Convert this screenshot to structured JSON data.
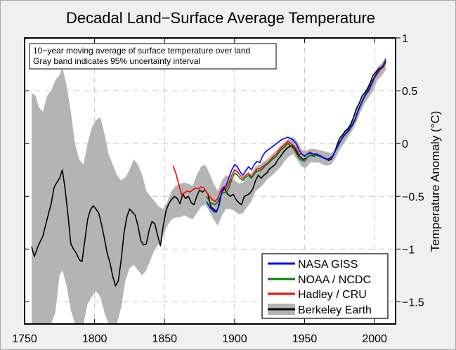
{
  "chart_data": {
    "type": "line",
    "title": "Decadal Land−Surface Average Temperature",
    "xlabel": "",
    "ylabel": "Temperature Anomaly (°C)",
    "xlim": [
      1750,
      2015
    ],
    "ylim": [
      -1.71,
      1.0
    ],
    "x_ticks": [
      1750,
      1800,
      1850,
      1900,
      1950,
      2000
    ],
    "x_tick_labels": [
      "1750",
      "1800",
      "1850",
      "1900",
      "1950",
      "2000"
    ],
    "y_ticks": [
      1,
      0.5,
      0,
      -0.5,
      -1,
      -1.5
    ],
    "y_tick_labels": [
      "1",
      "0.5",
      "0",
      "−0.5",
      "−1",
      "−1.5"
    ],
    "y_axis_side": "right",
    "grid": true,
    "annotation": [
      "10−year moving average of surface temperature over land",
      "Gray band indicates 95% uncertainty interval"
    ],
    "annotation_position": "top-left",
    "legend_position": "bottom-right",
    "legend": [
      {
        "name": "NASA GISS",
        "color": "#0000ff"
      },
      {
        "name": "NOAA / NCDC",
        "color": "#008000"
      },
      {
        "name": "Hadley / CRU",
        "color": "#ff0000"
      },
      {
        "name": "Berkeley Earth",
        "color": "#000000",
        "band_color": "#b4b4b4"
      }
    ],
    "series": [
      {
        "name": "Berkeley Earth",
        "color": "#000000",
        "x": [
          1755,
          1757,
          1760,
          1763,
          1766,
          1769,
          1771,
          1773,
          1775,
          1777,
          1779,
          1781,
          1783,
          1785,
          1787,
          1789,
          1791,
          1793,
          1795,
          1797,
          1799,
          1801,
          1803,
          1805,
          1807,
          1809,
          1811,
          1813,
          1815,
          1817,
          1819,
          1821,
          1823,
          1825,
          1827,
          1829,
          1831,
          1833,
          1835,
          1837,
          1839,
          1841,
          1843,
          1845,
          1847,
          1849,
          1851,
          1853,
          1855,
          1857,
          1859,
          1861,
          1863,
          1865,
          1867,
          1869,
          1871,
          1873,
          1875,
          1877,
          1879,
          1881,
          1883,
          1885,
          1887,
          1889,
          1891,
          1893,
          1895,
          1897,
          1899,
          1901,
          1903,
          1905,
          1907,
          1909,
          1911,
          1913,
          1915,
          1917,
          1919,
          1921,
          1923,
          1925,
          1927,
          1929,
          1931,
          1933,
          1935,
          1937,
          1939,
          1941,
          1943,
          1945,
          1947,
          1949,
          1951,
          1953,
          1955,
          1957,
          1959,
          1961,
          1963,
          1965,
          1967,
          1969,
          1971,
          1973,
          1975,
          1977,
          1979,
          1981,
          1983,
          1985,
          1987,
          1989,
          1991,
          1993,
          1995,
          1997,
          1999,
          2001,
          2003,
          2005,
          2007
        ],
        "y": [
          -0.98,
          -1.07,
          -0.96,
          -0.88,
          -0.72,
          -0.57,
          -0.42,
          -0.37,
          -0.33,
          -0.25,
          -0.44,
          -0.68,
          -0.95,
          -1.0,
          -1.04,
          -1.1,
          -1.12,
          -0.92,
          -0.72,
          -0.63,
          -0.59,
          -0.62,
          -0.66,
          -0.77,
          -0.9,
          -1.04,
          -1.13,
          -1.26,
          -1.35,
          -1.3,
          -1.1,
          -0.85,
          -0.7,
          -0.62,
          -0.65,
          -0.68,
          -0.78,
          -0.92,
          -0.96,
          -0.95,
          -0.82,
          -0.74,
          -0.76,
          -0.87,
          -0.97,
          -0.78,
          -0.64,
          -0.57,
          -0.53,
          -0.5,
          -0.52,
          -0.57,
          -0.48,
          -0.52,
          -0.5,
          -0.56,
          -0.58,
          -0.5,
          -0.44,
          -0.46,
          -0.44,
          -0.48,
          -0.6,
          -0.62,
          -0.65,
          -0.58,
          -0.45,
          -0.43,
          -0.48,
          -0.5,
          -0.48,
          -0.53,
          -0.56,
          -0.58,
          -0.5,
          -0.49,
          -0.47,
          -0.43,
          -0.35,
          -0.3,
          -0.33,
          -0.3,
          -0.28,
          -0.24,
          -0.22,
          -0.2,
          -0.15,
          -0.12,
          -0.08,
          -0.05,
          -0.03,
          -0.02,
          -0.04,
          -0.1,
          -0.13,
          -0.15,
          -0.14,
          -0.12,
          -0.11,
          -0.12,
          -0.1,
          -0.12,
          -0.13,
          -0.14,
          -0.16,
          -0.15,
          -0.1,
          -0.02,
          0.05,
          0.08,
          0.12,
          0.14,
          0.18,
          0.25,
          0.33,
          0.38,
          0.45,
          0.48,
          0.52,
          0.58,
          0.65,
          0.68,
          0.71,
          0.72,
          0.76
        ]
      },
      {
        "name": "Hadley / CRU",
        "color": "#ff0000",
        "x": [
          1856,
          1858,
          1860,
          1862,
          1864,
          1866,
          1868,
          1870,
          1872,
          1874,
          1876,
          1878,
          1880,
          1882,
          1884,
          1886,
          1888,
          1890,
          1892,
          1894,
          1896,
          1898,
          1900,
          1902,
          1904,
          1906,
          1908,
          1910,
          1912,
          1914,
          1916,
          1918,
          1920,
          1922,
          1924,
          1926,
          1928,
          1930,
          1932,
          1934,
          1936,
          1938,
          1940,
          1942,
          1944,
          1946,
          1948,
          1950,
          1952,
          1954,
          1956,
          1958,
          1960,
          1962,
          1964,
          1966,
          1968,
          1970,
          1972,
          1974,
          1976,
          1978,
          1980,
          1982,
          1984,
          1986,
          1988,
          1990,
          1992,
          1994,
          1996,
          1998,
          2000,
          2002,
          2004,
          2006,
          2008
        ],
        "y": [
          -0.21,
          -0.28,
          -0.38,
          -0.48,
          -0.47,
          -0.45,
          -0.46,
          -0.44,
          -0.42,
          -0.43,
          -0.41,
          -0.42,
          -0.46,
          -0.5,
          -0.53,
          -0.55,
          -0.52,
          -0.45,
          -0.41,
          -0.43,
          -0.38,
          -0.3,
          -0.25,
          -0.27,
          -0.3,
          -0.33,
          -0.3,
          -0.28,
          -0.32,
          -0.28,
          -0.24,
          -0.24,
          -0.22,
          -0.2,
          -0.18,
          -0.15,
          -0.12,
          -0.1,
          -0.06,
          -0.03,
          -0.01,
          0.02,
          0.0,
          -0.02,
          -0.05,
          -0.1,
          -0.1,
          -0.12,
          -0.1,
          -0.08,
          -0.1,
          -0.1,
          -0.11,
          -0.12,
          -0.14,
          -0.15,
          -0.14,
          -0.12,
          -0.07,
          -0.02,
          0.03,
          0.07,
          0.1,
          0.13,
          0.17,
          0.22,
          0.3,
          0.36,
          0.42,
          0.47,
          0.5,
          0.56,
          0.62,
          0.66,
          0.7,
          0.72,
          0.77
        ]
      },
      {
        "name": "NOAA / NCDC",
        "color": "#008000",
        "x": [
          1880,
          1882,
          1884,
          1886,
          1888,
          1890,
          1892,
          1894,
          1896,
          1898,
          1900,
          1902,
          1904,
          1906,
          1908,
          1910,
          1912,
          1914,
          1916,
          1918,
          1920,
          1922,
          1924,
          1926,
          1928,
          1930,
          1932,
          1934,
          1936,
          1938,
          1940,
          1942,
          1944,
          1946,
          1948,
          1950,
          1952,
          1954,
          1956,
          1958,
          1960,
          1962,
          1964,
          1966,
          1968,
          1970,
          1972,
          1974,
          1976,
          1978,
          1980,
          1982,
          1984,
          1986,
          1988,
          1990,
          1992,
          1994,
          1996,
          1998,
          2000,
          2002,
          2004,
          2006,
          2008
        ],
        "y": [
          -0.5,
          -0.55,
          -0.57,
          -0.58,
          -0.55,
          -0.5,
          -0.46,
          -0.47,
          -0.42,
          -0.34,
          -0.28,
          -0.3,
          -0.33,
          -0.35,
          -0.32,
          -0.3,
          -0.33,
          -0.29,
          -0.26,
          -0.26,
          -0.24,
          -0.21,
          -0.19,
          -0.16,
          -0.14,
          -0.12,
          -0.08,
          -0.05,
          -0.03,
          0.0,
          -0.02,
          -0.05,
          -0.09,
          -0.14,
          -0.16,
          -0.17,
          -0.13,
          -0.11,
          -0.12,
          -0.11,
          -0.12,
          -0.13,
          -0.14,
          -0.15,
          -0.14,
          -0.12,
          -0.07,
          -0.01,
          0.04,
          0.08,
          0.11,
          0.14,
          0.18,
          0.23,
          0.31,
          0.37,
          0.43,
          0.48,
          0.52,
          0.58,
          0.64,
          0.68,
          0.72,
          0.74,
          0.8
        ]
      },
      {
        "name": "NASA GISS",
        "color": "#0000ff",
        "x": [
          1880,
          1882,
          1884,
          1886,
          1888,
          1890,
          1892,
          1894,
          1896,
          1898,
          1900,
          1902,
          1904,
          1906,
          1908,
          1910,
          1912,
          1914,
          1916,
          1918,
          1920,
          1922,
          1924,
          1926,
          1928,
          1930,
          1932,
          1934,
          1936,
          1938,
          1940,
          1942,
          1944,
          1946,
          1948,
          1950,
          1952,
          1954,
          1956,
          1958,
          1960,
          1962,
          1964,
          1966,
          1968,
          1970,
          1972,
          1974,
          1976,
          1978,
          1980,
          1982,
          1984,
          1986,
          1988,
          1990,
          1992,
          1994,
          1996,
          1998,
          2000,
          2002,
          2004,
          2006,
          2008
        ],
        "y": [
          -0.55,
          -0.6,
          -0.63,
          -0.65,
          -0.62,
          -0.5,
          -0.42,
          -0.4,
          -0.32,
          -0.25,
          -0.2,
          -0.22,
          -0.27,
          -0.3,
          -0.26,
          -0.22,
          -0.25,
          -0.2,
          -0.17,
          -0.18,
          -0.12,
          -0.08,
          -0.06,
          -0.04,
          -0.02,
          0.0,
          0.02,
          0.04,
          0.05,
          0.06,
          0.05,
          0.03,
          0.0,
          -0.06,
          -0.1,
          -0.12,
          -0.1,
          -0.09,
          -0.1,
          -0.1,
          -0.11,
          -0.12,
          -0.14,
          -0.15,
          -0.14,
          -0.12,
          -0.07,
          -0.02,
          0.03,
          0.07,
          0.1,
          0.13,
          0.17,
          0.22,
          0.3,
          0.36,
          0.42,
          0.47,
          0.51,
          0.57,
          0.63,
          0.67,
          0.71,
          0.73,
          0.78
        ]
      },
      {
        "name": "Berkeley Earth 95% uncertainty",
        "type": "band",
        "color": "#b4b4b4",
        "x": [
          1755,
          1758,
          1760,
          1763,
          1766,
          1769,
          1772,
          1775,
          1777,
          1780,
          1783,
          1786,
          1789,
          1792,
          1795,
          1798,
          1801,
          1804,
          1807,
          1810,
          1813,
          1816,
          1819,
          1822,
          1825,
          1828,
          1831,
          1834,
          1837,
          1840,
          1843,
          1846,
          1849,
          1852,
          1855,
          1858,
          1861,
          1864,
          1867,
          1870,
          1873,
          1876,
          1879,
          1882,
          1885,
          1888,
          1891,
          1894,
          1897,
          1900,
          1903,
          1906,
          1909,
          1912,
          1915,
          1918,
          1921,
          1924,
          1927,
          1930,
          1933,
          1936,
          1939,
          1942,
          1945,
          1948,
          1951,
          1954,
          1957,
          1960,
          1963,
          1966,
          1969,
          1972,
          1975,
          1978,
          1981,
          1984,
          1987,
          1990,
          1993,
          1996,
          1999,
          2002,
          2005,
          2008
        ],
        "lower": [
          -1.71,
          -1.71,
          -1.71,
          -1.71,
          -1.71,
          -1.71,
          -1.6,
          -1.25,
          -1.2,
          -1.35,
          -1.58,
          -1.71,
          -1.71,
          -1.71,
          -1.52,
          -1.45,
          -1.4,
          -1.45,
          -1.6,
          -1.71,
          -1.71,
          -1.71,
          -1.55,
          -1.3,
          -1.18,
          -1.15,
          -1.2,
          -1.25,
          -1.2,
          -1.1,
          -1.0,
          -0.95,
          -0.88,
          -0.78,
          -0.72,
          -0.7,
          -0.7,
          -0.68,
          -0.7,
          -0.72,
          -0.66,
          -0.6,
          -0.58,
          -0.64,
          -0.72,
          -0.78,
          -0.68,
          -0.62,
          -0.62,
          -0.64,
          -0.67,
          -0.66,
          -0.6,
          -0.55,
          -0.45,
          -0.42,
          -0.38,
          -0.33,
          -0.3,
          -0.26,
          -0.22,
          -0.16,
          -0.12,
          -0.1,
          -0.16,
          -0.22,
          -0.23,
          -0.18,
          -0.18,
          -0.18,
          -0.2,
          -0.21,
          -0.2,
          -0.14,
          -0.06,
          0.0,
          0.06,
          0.12,
          0.2,
          0.3,
          0.38,
          0.44,
          0.5,
          0.6,
          0.64,
          0.7
        ],
        "upper": [
          0.48,
          0.45,
          0.35,
          0.3,
          0.45,
          0.5,
          0.6,
          0.65,
          0.72,
          0.55,
          0.3,
          0.0,
          -0.15,
          -0.2,
          0.0,
          0.15,
          0.22,
          0.25,
          0.1,
          -0.1,
          -0.2,
          -0.3,
          -0.35,
          -0.32,
          -0.25,
          -0.15,
          -0.2,
          -0.3,
          -0.45,
          -0.5,
          -0.55,
          -0.6,
          -0.62,
          -0.55,
          -0.45,
          -0.4,
          -0.38,
          -0.37,
          -0.38,
          -0.4,
          -0.3,
          -0.22,
          -0.2,
          -0.28,
          -0.38,
          -0.45,
          -0.35,
          -0.3,
          -0.33,
          -0.35,
          -0.38,
          -0.37,
          -0.32,
          -0.28,
          -0.22,
          -0.2,
          -0.17,
          -0.14,
          -0.1,
          -0.06,
          -0.02,
          0.02,
          0.05,
          0.06,
          0.02,
          -0.06,
          -0.07,
          -0.05,
          -0.05,
          -0.06,
          -0.07,
          -0.08,
          -0.09,
          -0.06,
          0.03,
          0.1,
          0.16,
          0.23,
          0.32,
          0.42,
          0.5,
          0.56,
          0.62,
          0.72,
          0.76,
          0.82
        ]
      }
    ]
  }
}
